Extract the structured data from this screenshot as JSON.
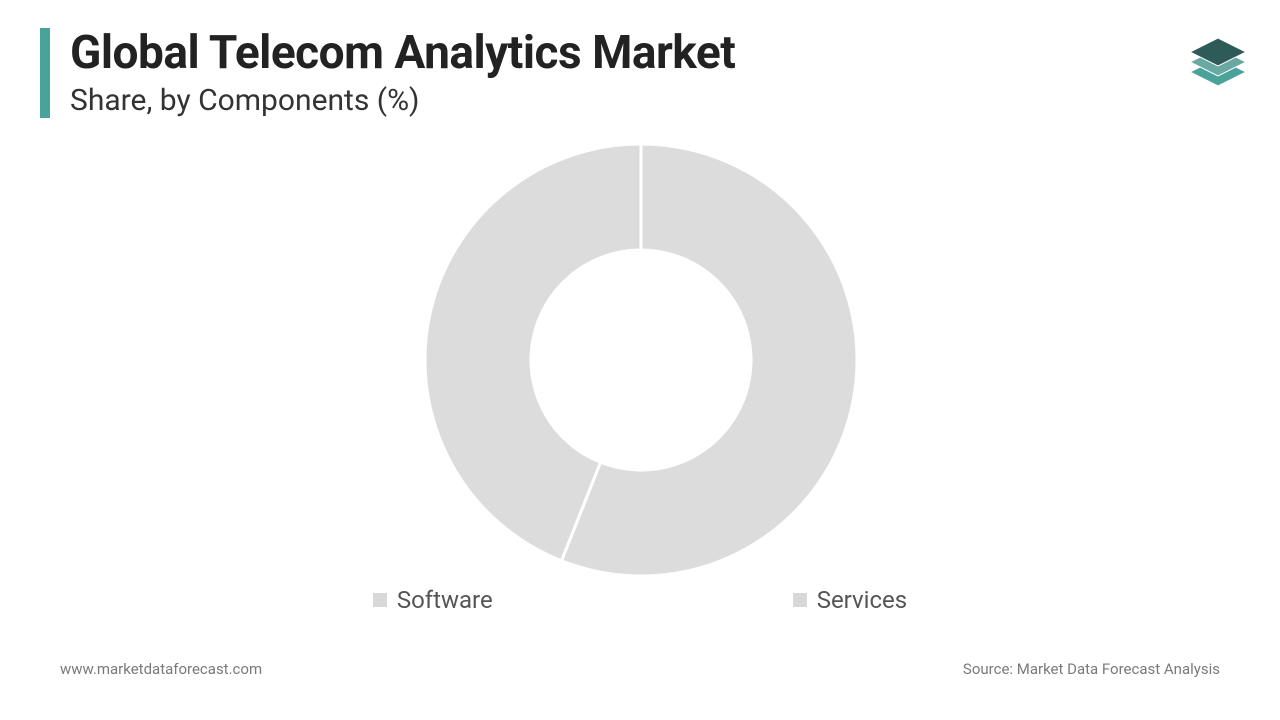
{
  "header": {
    "title": "Global Telecom Analytics Market",
    "subtitle": "Share, by Components (%)",
    "accent_color": "#4aa39b",
    "title_color": "#222222",
    "subtitle_color": "#333333",
    "title_fontsize": 46,
    "subtitle_fontsize": 30
  },
  "logo": {
    "layer1_fill": "#2e5a57",
    "layer2_fill": "#6aa8a2",
    "layer3_fill": "#4aa39b",
    "stroke": "#ffffff"
  },
  "chart": {
    "type": "donut",
    "outer_radius": 216,
    "inner_radius": 110,
    "gap_stroke_width": 3,
    "gap_stroke_color": "#ffffff",
    "background_color": "#ffffff",
    "slice_color": "#dcdcdc",
    "slices": [
      {
        "label": "Software",
        "value": 56,
        "color": "#dcdcdc"
      },
      {
        "label": "Services",
        "value": 44,
        "color": "#dcdcdc"
      }
    ]
  },
  "legend": {
    "fontsize": 24,
    "text_color": "#555555",
    "swatch_color": "#d8d8d8",
    "items": [
      {
        "label": "Software"
      },
      {
        "label": "Services"
      }
    ]
  },
  "footer": {
    "left": "www.marketdataforecast.com",
    "right": "Source: Market Data Forecast Analysis",
    "color": "#7a7a7a",
    "fontsize": 15
  }
}
